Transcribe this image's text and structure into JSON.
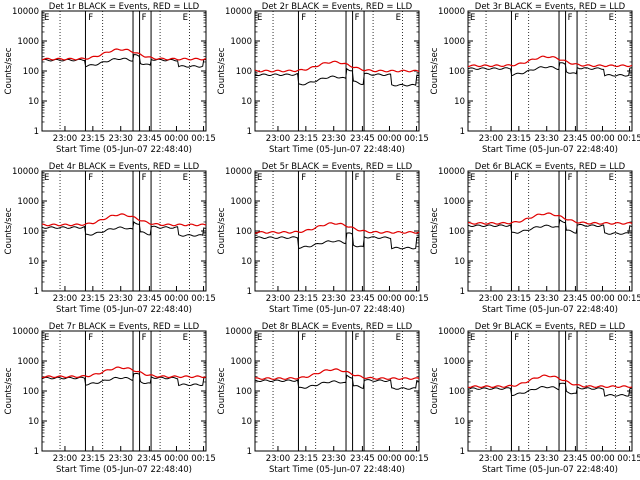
{
  "colors": {
    "events": "#000000",
    "lld": "#e00000",
    "frame": "#000000"
  },
  "chart_data": [
    {
      "type": "line",
      "title": "Det 1r BLACK = Events, RED = LLD",
      "xlabel": "Start Time (05-Jun-07 22:48:40)",
      "ylabel": "Counts/sec",
      "yscale": "log",
      "ylim": [
        1,
        10000
      ],
      "yticks": [
        "1",
        "10",
        "100",
        "1000",
        "10000"
      ],
      "xticks": [
        "23:00",
        "23:15",
        "23:30",
        "23:45",
        "00:00",
        "00:15"
      ],
      "markers": [
        "E",
        "F",
        "F",
        "E"
      ],
      "series": [
        {
          "color": "#000000",
          "base": 230,
          "peak": 1.8,
          "drop": 0.62
        },
        {
          "color": "#e00000",
          "base": 250,
          "peak": 2.1,
          "drop": 1.0
        }
      ]
    },
    {
      "type": "line",
      "title": "Det 2r BLACK = Events, RED = LLD",
      "xlabel": "Start Time (05-Jun-07 22:48:40)",
      "ylabel": "Counts/sec",
      "yscale": "log",
      "ylim": [
        1,
        10000
      ],
      "yticks": [
        "1",
        "10",
        "100",
        "1000",
        "10000"
      ],
      "xticks": [
        "23:00",
        "23:15",
        "23:30",
        "23:45",
        "00:00",
        "00:15"
      ],
      "markers": [
        "E",
        "F",
        "F",
        "E"
      ],
      "series": [
        {
          "color": "#000000",
          "base": 75,
          "peak": 1.9,
          "drop": 0.45
        },
        {
          "color": "#e00000",
          "base": 100,
          "peak": 2.0,
          "drop": 1.0
        }
      ]
    },
    {
      "type": "line",
      "title": "Det 3r BLACK = Events, RED = LLD",
      "xlabel": "Start Time (05-Jun-07 22:48:40)",
      "ylabel": "Counts/sec",
      "yscale": "log",
      "ylim": [
        1,
        10000
      ],
      "yticks": [
        "1",
        "10",
        "100",
        "1000",
        "10000"
      ],
      "xticks": [
        "23:00",
        "23:15",
        "23:30",
        "23:45",
        "00:00",
        "00:15"
      ],
      "markers": [
        "E",
        "F",
        "F",
        "E"
      ],
      "series": [
        {
          "color": "#000000",
          "base": 120,
          "peak": 1.9,
          "drop": 0.6
        },
        {
          "color": "#e00000",
          "base": 150,
          "peak": 2.0,
          "drop": 1.0
        }
      ]
    },
    {
      "type": "line",
      "title": "Det 4r BLACK = Events, RED = LLD",
      "xlabel": "Start Time (05-Jun-07 22:48:40)",
      "ylabel": "Counts/sec",
      "yscale": "log",
      "ylim": [
        1,
        10000
      ],
      "yticks": [
        "1",
        "10",
        "100",
        "1000",
        "10000"
      ],
      "xticks": [
        "23:00",
        "23:15",
        "23:30",
        "23:45",
        "00:00",
        "00:15"
      ],
      "markers": [
        "E",
        "F",
        "F",
        "E"
      ],
      "series": [
        {
          "color": "#000000",
          "base": 130,
          "peak": 1.8,
          "drop": 0.55
        },
        {
          "color": "#e00000",
          "base": 160,
          "peak": 2.2,
          "drop": 1.0
        }
      ]
    },
    {
      "type": "line",
      "title": "Det 5r BLACK = Events, RED = LLD",
      "xlabel": "Start Time (05-Jun-07 22:48:40)",
      "ylabel": "Counts/sec",
      "yscale": "log",
      "ylim": [
        1,
        10000
      ],
      "yticks": [
        "1",
        "10",
        "100",
        "1000",
        "10000"
      ],
      "xticks": [
        "23:00",
        "23:15",
        "23:30",
        "23:45",
        "00:00",
        "00:15"
      ],
      "markers": [
        "E",
        "F",
        "F",
        "E"
      ],
      "series": [
        {
          "color": "#000000",
          "base": 60,
          "peak": 1.7,
          "drop": 0.45
        },
        {
          "color": "#e00000",
          "base": 90,
          "peak": 2.0,
          "drop": 1.0
        }
      ]
    },
    {
      "type": "line",
      "title": "Det 6r BLACK = Events, RED = LLD",
      "xlabel": "Start Time (05-Jun-07 22:48:40)",
      "ylabel": "Counts/sec",
      "yscale": "log",
      "ylim": [
        1,
        10000
      ],
      "yticks": [
        "1",
        "10",
        "100",
        "1000",
        "10000"
      ],
      "xticks": [
        "23:00",
        "23:15",
        "23:30",
        "23:45",
        "00:00",
        "00:15"
      ],
      "markers": [
        "E",
        "F",
        "F",
        "E"
      ],
      "series": [
        {
          "color": "#000000",
          "base": 150,
          "peak": 1.8,
          "drop": 0.55
        },
        {
          "color": "#e00000",
          "base": 180,
          "peak": 2.1,
          "drop": 1.0
        }
      ]
    },
    {
      "type": "line",
      "title": "Det 7r BLACK = Events, RED = LLD",
      "xlabel": "Start Time (05-Jun-07 22:48:40)",
      "ylabel": "Counts/sec",
      "yscale": "log",
      "ylim": [
        1,
        10000
      ],
      "yticks": [
        "1",
        "10",
        "100",
        "1000",
        "10000"
      ],
      "xticks": [
        "23:00",
        "23:15",
        "23:30",
        "23:45",
        "00:00",
        "00:15"
      ],
      "markers": [
        "E",
        "F",
        "F",
        "E"
      ],
      "series": [
        {
          "color": "#000000",
          "base": 270,
          "peak": 1.7,
          "drop": 0.6
        },
        {
          "color": "#e00000",
          "base": 300,
          "peak": 2.0,
          "drop": 1.0
        }
      ]
    },
    {
      "type": "line",
      "title": "Det 8r BLACK = Events, RED = LLD",
      "xlabel": "Start Time (05-Jun-07 22:48:40)",
      "ylabel": "Counts/sec",
      "yscale": "log",
      "ylim": [
        1,
        10000
      ],
      "yticks": [
        "1",
        "10",
        "100",
        "1000",
        "10000"
      ],
      "xticks": [
        "23:00",
        "23:15",
        "23:30",
        "23:45",
        "00:00",
        "00:15"
      ],
      "markers": [
        "E",
        "F",
        "F",
        "E"
      ],
      "series": [
        {
          "color": "#000000",
          "base": 220,
          "peak": 1.7,
          "drop": 0.55
        },
        {
          "color": "#e00000",
          "base": 260,
          "peak": 2.0,
          "drop": 1.0
        }
      ]
    },
    {
      "type": "line",
      "title": "Det 9r BLACK = Events, RED = LLD",
      "xlabel": "Start Time (05-Jun-07 22:48:40)",
      "ylabel": "Counts/sec",
      "yscale": "log",
      "ylim": [
        1,
        10000
      ],
      "yticks": [
        "1",
        "10",
        "100",
        "1000",
        "10000"
      ],
      "xticks": [
        "23:00",
        "23:15",
        "23:30",
        "23:45",
        "00:00",
        "00:15"
      ],
      "markers": [
        "E",
        "F",
        "F",
        "E"
      ],
      "series": [
        {
          "color": "#000000",
          "base": 120,
          "peak": 1.9,
          "drop": 0.6
        },
        {
          "color": "#e00000",
          "base": 140,
          "peak": 2.3,
          "drop": 1.0
        }
      ]
    }
  ]
}
